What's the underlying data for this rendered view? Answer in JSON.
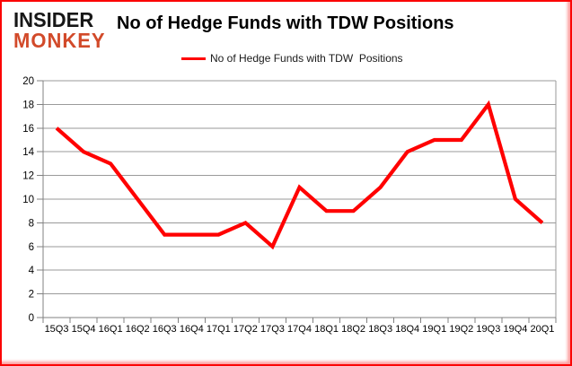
{
  "logo": {
    "line1": "INSIDER",
    "line2": "MONKEY"
  },
  "header": {
    "title": "No of Hedge Funds with TDW Positions"
  },
  "legend": {
    "label": "No of Hedge Funds with TDW  Positions"
  },
  "colors": {
    "series_line": "#ff0000",
    "legend_swatch": "#e21414",
    "logo_red": "#d24a2a",
    "logo_black": "#171717",
    "frame_border": "#fb0606",
    "gridline": "#9a9a9a",
    "axis": "#808080",
    "label_text": "#000000"
  },
  "chart_data": {
    "type": "line",
    "title": "No of Hedge Funds with TDW Positions",
    "legend_entries": [
      "No of Hedge Funds with TDW  Positions"
    ],
    "legend_position": "top",
    "categories": [
      "15Q3",
      "15Q4",
      "16Q1",
      "16Q2",
      "16Q3",
      "16Q4",
      "17Q1",
      "17Q2",
      "17Q3",
      "17Q4",
      "18Q1",
      "18Q2",
      "18Q3",
      "18Q4",
      "19Q1",
      "19Q2",
      "19Q3",
      "19Q4",
      "20Q1"
    ],
    "values": [
      16,
      14,
      13,
      10,
      7,
      7,
      7,
      8,
      6,
      11,
      9,
      9,
      11,
      14,
      15,
      15,
      18,
      10,
      8
    ],
    "xlabel": "",
    "ylabel": "",
    "ylim": [
      0,
      20
    ],
    "ytick_step": 2,
    "grid": true
  }
}
